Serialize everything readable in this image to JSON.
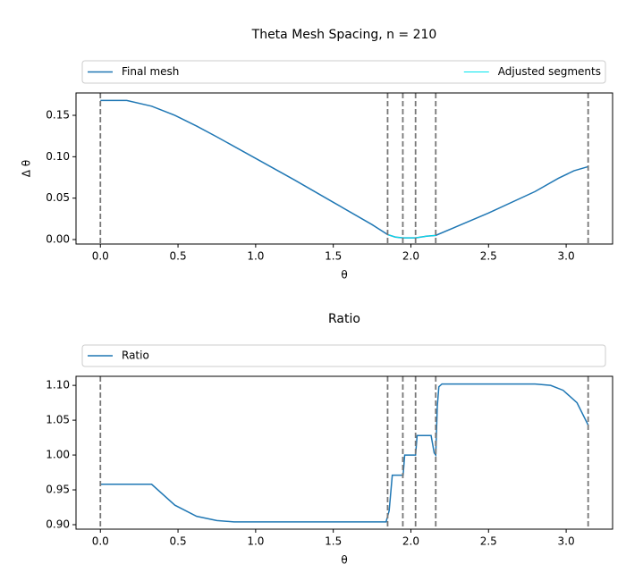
{
  "chart_data": [
    {
      "type": "line",
      "title": "Theta Mesh Spacing, n = 210",
      "x_label": "θ",
      "y_label": "Δ θ",
      "series": [
        {
          "name": "Final mesh",
          "color": "#1f77b4",
          "width": 1.5,
          "x": [
            0,
            0.17,
            0.33,
            0.48,
            0.62,
            0.75,
            1.0,
            1.25,
            1.5,
            1.75,
            1.85,
            1.9,
            1.95,
            2.03,
            2.1,
            2.16,
            2.5,
            2.8,
            2.95,
            3.05,
            3.1416
          ],
          "values": [
            0.168,
            0.168,
            0.161,
            0.15,
            0.137,
            0.124,
            0.098,
            0.072,
            0.045,
            0.018,
            0.006,
            0.003,
            0.002,
            0.002,
            0.004,
            0.005,
            0.032,
            0.058,
            0.074,
            0.083,
            0.088
          ]
        },
        {
          "name": "Adjusted segments",
          "color": "#00e5ee",
          "width": 1,
          "x": [
            1.85,
            1.9,
            1.95,
            2.03,
            2.1,
            2.16
          ],
          "values": [
            0.006,
            0.003,
            0.002,
            0.002,
            0.004,
            0.005
          ]
        }
      ],
      "vlines": [
        0,
        1.85,
        1.948,
        2.03,
        2.16,
        3.1416
      ],
      "vline_color": "#777777",
      "xlim": [
        -0.157,
        3.299
      ],
      "xticks": [
        {
          "value": 0,
          "label": "0.0"
        },
        {
          "value": 0.5,
          "label": "0.5"
        },
        {
          "value": 1,
          "label": "1.0"
        },
        {
          "value": 1.5,
          "label": "1.5"
        },
        {
          "value": 2,
          "label": "2.0"
        },
        {
          "value": 2.5,
          "label": "2.5"
        },
        {
          "value": 3,
          "label": "3.0"
        }
      ],
      "ylim": [
        -0.0054,
        0.177
      ],
      "yticks": [
        {
          "value": 0,
          "label": "0.00"
        },
        {
          "value": 0.05,
          "label": "0.05"
        },
        {
          "value": 0.1,
          "label": "0.10"
        },
        {
          "value": 0.15,
          "label": "0.15"
        }
      ]
    },
    {
      "type": "line",
      "title": "Ratio",
      "x_label": "θ",
      "series": [
        {
          "name": "Ratio",
          "color": "#1f77b4",
          "width": 1.5,
          "x": [
            0,
            0.33,
            0.48,
            0.62,
            0.75,
            0.86,
            1.84,
            1.86,
            1.88,
            1.95,
            1.96,
            2.03,
            2.04,
            2.13,
            2.15,
            2.16,
            2.17,
            2.18,
            2.2,
            2.8,
            2.9,
            2.98,
            3.07,
            3.1416
          ],
          "values": [
            0.958,
            0.958,
            0.928,
            0.912,
            0.906,
            0.904,
            0.904,
            0.92,
            0.971,
            0.971,
            1.0,
            1.0,
            1.028,
            1.028,
            1.003,
            1.0,
            1.07,
            1.098,
            1.102,
            1.102,
            1.1,
            1.093,
            1.075,
            1.043
          ]
        }
      ],
      "vlines": [
        0,
        1.85,
        1.948,
        2.03,
        2.16,
        3.1416
      ],
      "vline_color": "#777777",
      "xlim": [
        -0.157,
        3.299
      ],
      "xticks": [
        {
          "value": 0,
          "label": "0.0"
        },
        {
          "value": 0.5,
          "label": "0.5"
        },
        {
          "value": 1,
          "label": "1.0"
        },
        {
          "value": 1.5,
          "label": "1.5"
        },
        {
          "value": 2,
          "label": "2.0"
        },
        {
          "value": 2.5,
          "label": "2.5"
        },
        {
          "value": 3,
          "label": "3.0"
        }
      ],
      "ylim": [
        0.8936,
        1.113
      ],
      "yticks": [
        {
          "value": 0.9,
          "label": "0.90"
        },
        {
          "value": 0.95,
          "label": "0.95"
        },
        {
          "value": 1,
          "label": "1.00"
        },
        {
          "value": 1.05,
          "label": "1.05"
        },
        {
          "value": 1.1,
          "label": "1.10"
        }
      ]
    }
  ]
}
